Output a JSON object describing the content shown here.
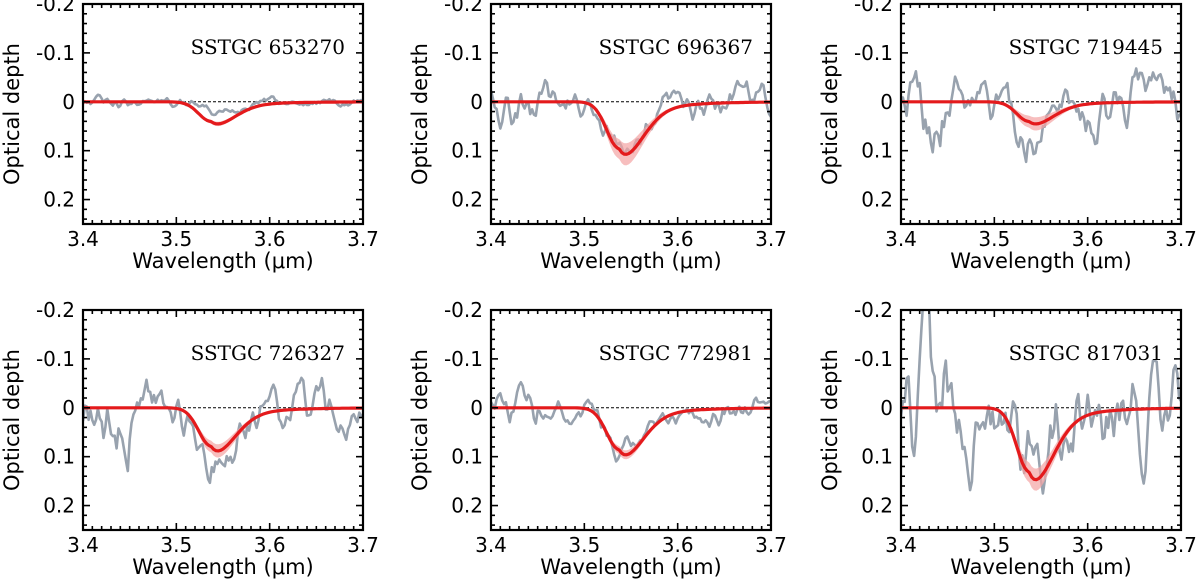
{
  "chart_data": [
    {
      "type": "line",
      "title": "SSTGC 653270",
      "xlabel": "Wavelength (μm)",
      "ylabel": "Optical depth",
      "xlim": [
        3.4,
        3.7
      ],
      "ylim": [
        0.25,
        -0.2
      ],
      "y_inverted": true,
      "x_ticks": [
        "3.4",
        "3.5",
        "3.6",
        "3.7"
      ],
      "y_ticks": [
        "-0.2",
        "-0.1",
        "0",
        "0.1",
        "0.2"
      ],
      "grid": false,
      "zero_reference": 0,
      "colors": {
        "observed": "#98a2ae",
        "fit": "#e41a1c",
        "fit_band": "#f4a3a3"
      },
      "series": [
        {
          "role": "observed",
          "noise": 0.012,
          "dip_depth": 0.025,
          "x": [
            3.4,
            3.7
          ]
        },
        {
          "role": "fit",
          "peak_x": 3.537,
          "peak_y": 0.04,
          "band": 0.004,
          "x": [
            3.4,
            3.7
          ]
        }
      ]
    },
    {
      "type": "line",
      "title": "SSTGC 696367",
      "xlabel": "Wavelength (μm)",
      "ylabel": "Optical depth",
      "xlim": [
        3.4,
        3.7
      ],
      "ylim": [
        0.25,
        -0.2
      ],
      "y_inverted": true,
      "x_ticks": [
        "3.4",
        "3.5",
        "3.6",
        "3.7"
      ],
      "y_ticks": [
        "-0.2",
        "-0.1",
        "0",
        "0.1",
        "0.2"
      ],
      "grid": false,
      "zero_reference": 0,
      "colors": {
        "observed": "#98a2ae",
        "fit": "#e41a1c",
        "fit_band": "#f4a3a3"
      },
      "series": [
        {
          "role": "observed",
          "noise": 0.04,
          "dip_depth": 0.11,
          "x": [
            3.4,
            3.7
          ]
        },
        {
          "role": "fit",
          "peak_x": 3.537,
          "peak_y": 0.095,
          "band": 0.02,
          "x": [
            3.4,
            3.7
          ]
        }
      ]
    },
    {
      "type": "line",
      "title": "SSTGC 719445",
      "xlabel": "Wavelength (μm)",
      "ylabel": "Optical depth",
      "xlim": [
        3.4,
        3.7
      ],
      "ylim": [
        0.25,
        -0.2
      ],
      "y_inverted": true,
      "x_ticks": [
        "3.4",
        "3.5",
        "3.6",
        "3.7"
      ],
      "y_ticks": [
        "-0.2",
        "-0.1",
        "0",
        "0.1",
        "0.2"
      ],
      "grid": false,
      "zero_reference": 0,
      "colors": {
        "observed": "#98a2ae",
        "fit": "#e41a1c",
        "fit_band": "#f4a3a3"
      },
      "series": [
        {
          "role": "observed",
          "noise": 0.07,
          "dip_depth": 0.05,
          "x": [
            3.4,
            3.7
          ]
        },
        {
          "role": "fit",
          "peak_x": 3.537,
          "peak_y": 0.04,
          "band": 0.012,
          "x": [
            3.4,
            3.7
          ]
        }
      ]
    },
    {
      "type": "line",
      "title": "SSTGC 726327",
      "xlabel": "Wavelength (μm)",
      "ylabel": "Optical depth",
      "xlim": [
        3.4,
        3.7
      ],
      "ylim": [
        0.25,
        -0.2
      ],
      "y_inverted": true,
      "x_ticks": [
        "3.4",
        "3.5",
        "3.6",
        "3.7"
      ],
      "y_ticks": [
        "-0.2",
        "-0.1",
        "0",
        "0.1",
        "0.2"
      ],
      "grid": false,
      "zero_reference": 0,
      "colors": {
        "observed": "#98a2ae",
        "fit": "#e41a1c",
        "fit_band": "#f4a3a3"
      },
      "series": [
        {
          "role": "observed",
          "noise": 0.055,
          "dip_depth": 0.1,
          "x": [
            3.4,
            3.7
          ]
        },
        {
          "role": "fit",
          "peak_x": 3.537,
          "peak_y": 0.078,
          "band": 0.012,
          "x": [
            3.4,
            3.7
          ]
        }
      ]
    },
    {
      "type": "line",
      "title": "SSTGC 772981",
      "xlabel": "Wavelength (μm)",
      "ylabel": "Optical depth",
      "xlim": [
        3.4,
        3.7
      ],
      "ylim": [
        0.25,
        -0.2
      ],
      "y_inverted": true,
      "x_ticks": [
        "3.4",
        "3.5",
        "3.6",
        "3.7"
      ],
      "y_ticks": [
        "-0.2",
        "-0.1",
        "0",
        "0.1",
        "0.2"
      ],
      "grid": false,
      "zero_reference": 0,
      "colors": {
        "observed": "#98a2ae",
        "fit": "#e41a1c",
        "fit_band": "#f4a3a3"
      },
      "series": [
        {
          "role": "observed",
          "noise": 0.03,
          "dip_depth": 0.085,
          "x": [
            3.4,
            3.7
          ]
        },
        {
          "role": "fit",
          "peak_x": 3.537,
          "peak_y": 0.085,
          "band": 0.008,
          "x": [
            3.4,
            3.7
          ]
        }
      ]
    },
    {
      "type": "line",
      "title": "SSTGC 817031",
      "xlabel": "Wavelength (μm)",
      "ylabel": "Optical depth",
      "xlim": [
        3.4,
        3.7
      ],
      "ylim": [
        0.25,
        -0.2
      ],
      "y_inverted": true,
      "x_ticks": [
        "3.4",
        "3.5",
        "3.6",
        "3.7"
      ],
      "y_ticks": [
        "-0.2",
        "-0.1",
        "0",
        "0.1",
        "0.2"
      ],
      "grid": false,
      "zero_reference": 0,
      "colors": {
        "observed": "#98a2ae",
        "fit": "#e41a1c",
        "fit_band": "#f4a3a3"
      },
      "series": [
        {
          "role": "observed",
          "noise": 0.11,
          "dip_depth": 0.12,
          "x": [
            3.4,
            3.7
          ]
        },
        {
          "role": "fit",
          "peak_x": 3.537,
          "peak_y": 0.13,
          "band": 0.02,
          "x": [
            3.4,
            3.7
          ]
        }
      ]
    }
  ]
}
